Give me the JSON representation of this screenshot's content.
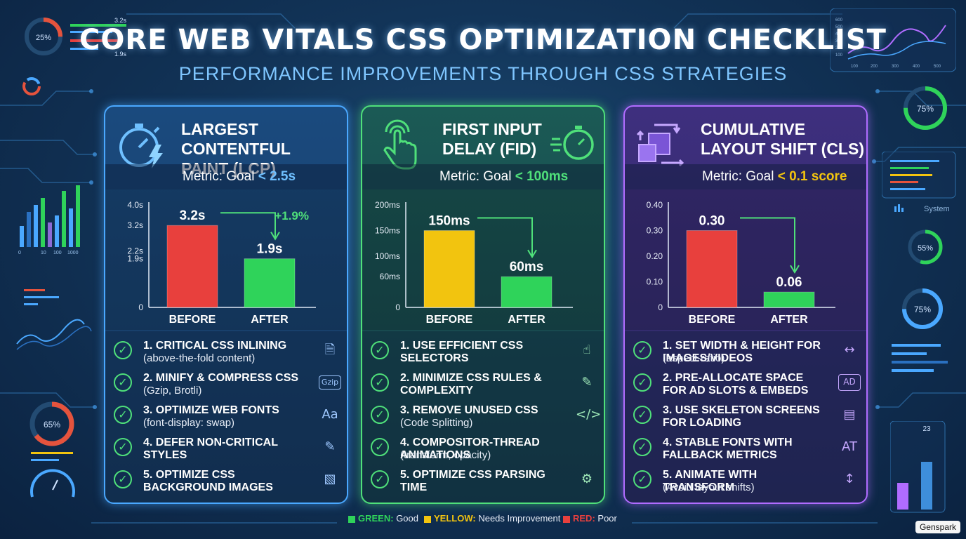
{
  "title": "CORE WEB VITALS CSS OPTIMIZATION CHECKLIST",
  "subtitle": "PERFORMANCE IMPROVEMENTS THROUGH CSS STRATEGIES",
  "colors": {
    "lcp": "#4aa8ff",
    "fid": "#4fe07a",
    "cls": "#b06cff",
    "good": "#2fd35a",
    "needs": "#f2c40f",
    "poor": "#e8403d"
  },
  "decor": {
    "gauge_tl": "25%",
    "gauge_tl_v1": "3.2s",
    "gauge_tl_v2": "1.9s",
    "gauge_r1": "75%",
    "gauge_r2": "55%",
    "gauge_r3": "75%",
    "gauge_l": "65%",
    "system_label": "System",
    "tr_ticks": [
      "100",
      "200",
      "300",
      "400",
      "500"
    ],
    "tr_yticks": [
      "600",
      "500",
      "400",
      "300",
      "200",
      "100"
    ],
    "bl_ticks": [
      "0",
      "10",
      "100",
      "1000"
    ],
    "br_label": "23"
  },
  "panels": {
    "lcp": {
      "title_line1": "LARGEST CONTENTFUL",
      "title_line2": "PAINT (LCP)",
      "metric_prefix": "Metric: Goal",
      "metric_goal": "< 2.5s",
      "chart_data": {
        "type": "bar",
        "categories": [
          "BEFORE",
          "AFTER"
        ],
        "values": [
          3.2,
          1.9
        ],
        "value_labels": [
          "3.2s",
          "1.9s"
        ],
        "yticks": [
          "4.0s",
          "3.2s",
          "2.2s",
          "1.9s",
          "0"
        ],
        "ytick_values": [
          4.0,
          3.2,
          2.2,
          1.9,
          0
        ],
        "ylim": [
          0,
          4.0
        ],
        "annotation": "+1.9%",
        "bar_colors": [
          "#e8403d",
          "#2fd35a"
        ]
      },
      "items": [
        {
          "title": "1. CRITICAL CSS INLINING",
          "sub": "(above-the-fold content)",
          "icon": "document-icon"
        },
        {
          "title": "2. MINIFY & COMPRESS CSS",
          "sub": "(Gzip, Brotli)",
          "icon": "gzip-icon",
          "icon_text": "Gzip"
        },
        {
          "title": "3. OPTIMIZE WEB FONTS",
          "sub": "(font-display: swap)",
          "icon": "font-icon",
          "icon_text": "Aa"
        },
        {
          "title": "4. DEFER NON-CRITICAL STYLES",
          "sub": "",
          "icon": "edit-document-icon"
        },
        {
          "title": "5. OPTIMIZE CSS BACKGROUND IMAGES",
          "sub": "",
          "icon": "image-icon"
        }
      ]
    },
    "fid": {
      "title_line1": "FIRST INPUT",
      "title_line2": "DELAY (FID)",
      "metric_prefix": "Metric: Goal",
      "metric_goal": "< 100ms",
      "chart_data": {
        "type": "bar",
        "categories": [
          "BEFORE",
          "AFTER"
        ],
        "values": [
          150,
          60
        ],
        "value_labels": [
          "150ms",
          "60ms"
        ],
        "yticks": [
          "200ms",
          "150ms",
          "100ms",
          "60ms",
          "0"
        ],
        "ytick_values": [
          200,
          150,
          100,
          60,
          0
        ],
        "ylim": [
          0,
          200
        ],
        "annotation": "",
        "bar_colors": [
          "#f2c40f",
          "#2fd35a"
        ]
      },
      "items": [
        {
          "title": "1. USE EFFICIENT CSS SELECTORS",
          "sub": "",
          "icon": "pointer-icon"
        },
        {
          "title": "2. MINIMIZE CSS RULES & COMPLEXITY",
          "sub": "",
          "icon": "edit-icon"
        },
        {
          "title": "3. REMOVE UNUSED CSS",
          "sub": "(Code Splitting)",
          "icon": "code-file-icon"
        },
        {
          "title": "4. COMPOSITOR-THREAD ANIMATIONS",
          "sub": "(transform, opacity)",
          "icon": ""
        },
        {
          "title": "5. OPTIMIZE CSS PARSING TIME",
          "sub": "",
          "icon": "settings-list-icon"
        }
      ]
    },
    "cls": {
      "title_line1": "CUMULATIVE",
      "title_line2": "LAYOUT SHIFT (CLS)",
      "metric_prefix": "Metric: Goal",
      "metric_goal": "< 0.1 score",
      "chart_data": {
        "type": "bar",
        "categories": [
          "BEFORE",
          "AFTER"
        ],
        "values": [
          0.3,
          0.06
        ],
        "value_labels": [
          "0.30",
          "0.06"
        ],
        "yticks": [
          "0.40",
          "0.30",
          "0.20",
          "0.10",
          "0"
        ],
        "ytick_values": [
          0.4,
          0.3,
          0.2,
          0.1,
          0
        ],
        "ylim": [
          0,
          0.4
        ],
        "annotation": "",
        "bar_colors": [
          "#e8403d",
          "#2fd35a"
        ]
      },
      "items": [
        {
          "title": "1. SET WIDTH & HEIGHT FOR IMAGES/VIDEOS",
          "sub": "(aspect-ratio)",
          "icon": "resize-icon"
        },
        {
          "title": "2. PRE-ALLOCATE SPACE FOR AD SLOTS & EMBEDS",
          "sub": "",
          "icon": "ad-icon",
          "icon_text": "AD"
        },
        {
          "title": "3. USE SKELETON SCREENS FOR LOADING",
          "sub": "",
          "icon": "skeleton-icon"
        },
        {
          "title": "4. STABLE FONTS WITH FALLBACK METRICS",
          "sub": "",
          "icon": "font-metrics-icon",
          "icon_text": "AT"
        },
        {
          "title": "5. ANIMATE WITH TRANSFORM",
          "sub": "(Avoid layout shifts)",
          "icon": "transform-icon"
        }
      ]
    }
  },
  "legend": {
    "green": "GREEN:",
    "green_desc": "Good",
    "yellow": "YELLOW:",
    "yellow_desc": "Needs Improvement",
    "red": "RED:",
    "red_desc": "Poor"
  },
  "watermark": "Genspark"
}
